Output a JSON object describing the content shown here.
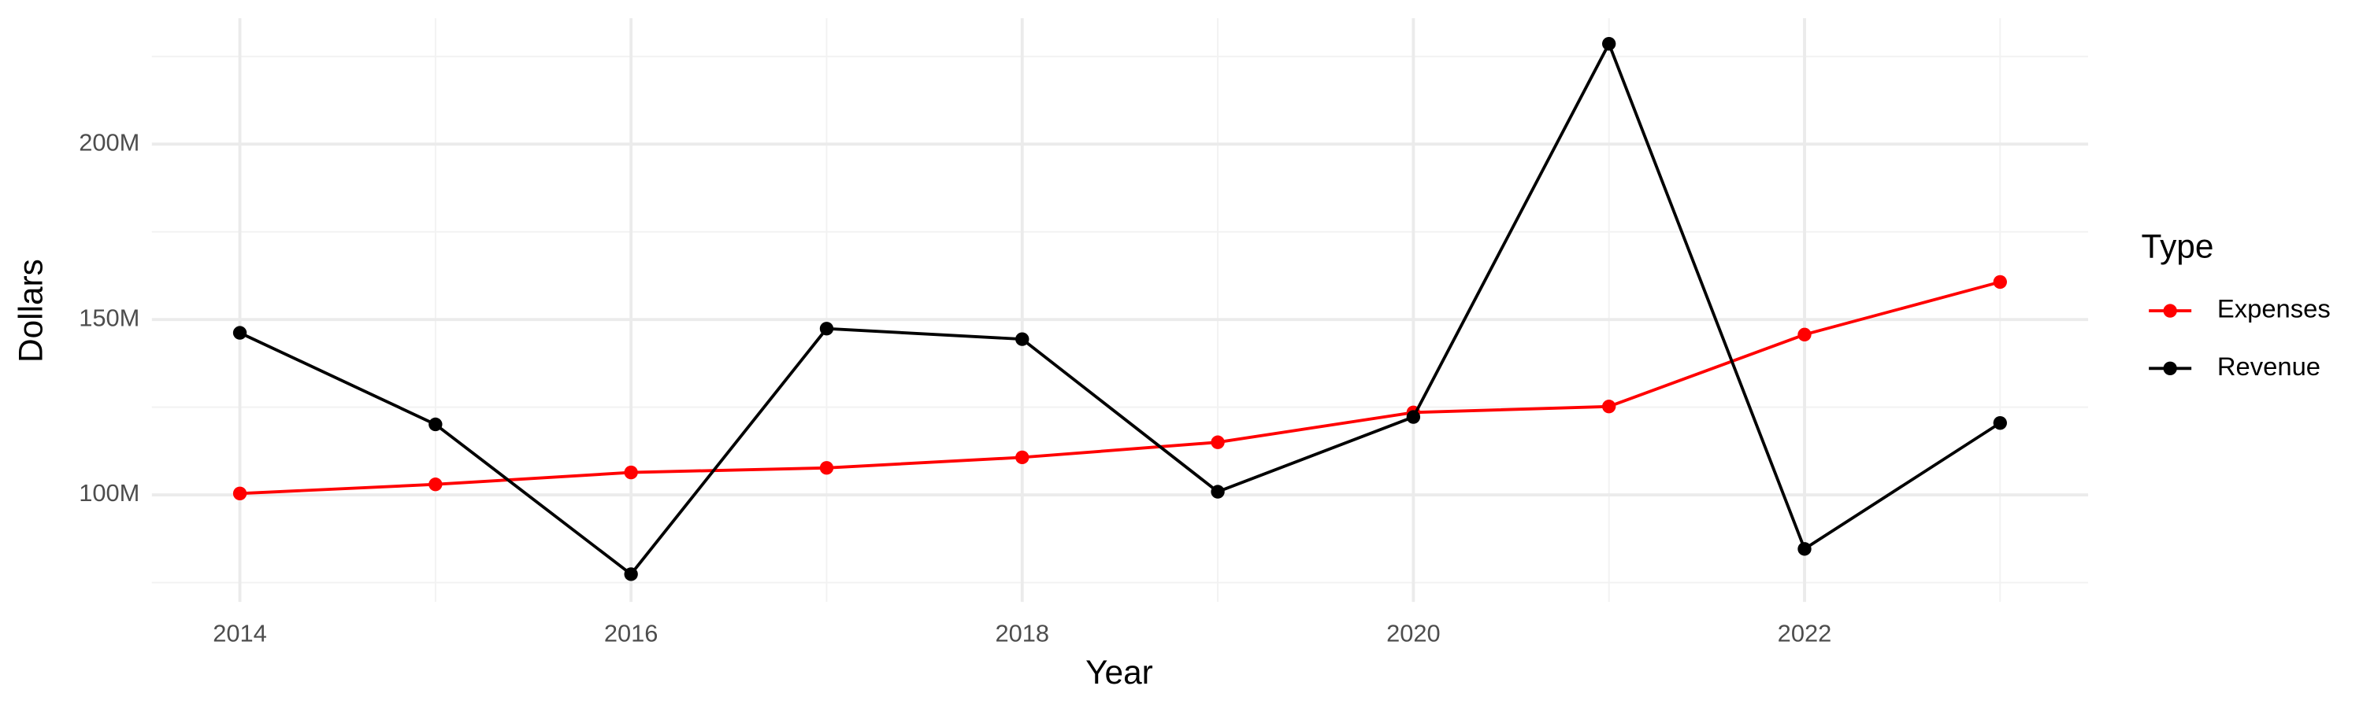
{
  "chart_data": {
    "type": "line",
    "x_label": "Year",
    "y_label": "Dollars",
    "x": [
      2014,
      2015,
      2016,
      2017,
      2018,
      2019,
      2020,
      2021,
      2022,
      2023
    ],
    "series": [
      {
        "name": "Expenses",
        "color": "#ff0000",
        "values": [
          100400000,
          103000000,
          106400000,
          107700000,
          110700000,
          115000000,
          123500000,
          125200000,
          145700000,
          160700000
        ]
      },
      {
        "name": "Revenue",
        "color": "#000000",
        "values": [
          146200000,
          120100000,
          77400000,
          147400000,
          144400000,
          100900000,
          122200000,
          228600000,
          84600000,
          120500000
        ]
      }
    ],
    "xlim": [
      2013.55,
      2023.45
    ],
    "xticks": [
      2014,
      2016,
      2018,
      2020,
      2022
    ],
    "ylim": [
      69500000,
      235900000
    ],
    "yticks": [
      {
        "value": 100000000,
        "label": "100M"
      },
      {
        "value": 150000000,
        "label": "150M"
      },
      {
        "value": 200000000,
        "label": "200M"
      }
    ],
    "grid": true,
    "legend_title": "Type",
    "legend_position": "right"
  }
}
